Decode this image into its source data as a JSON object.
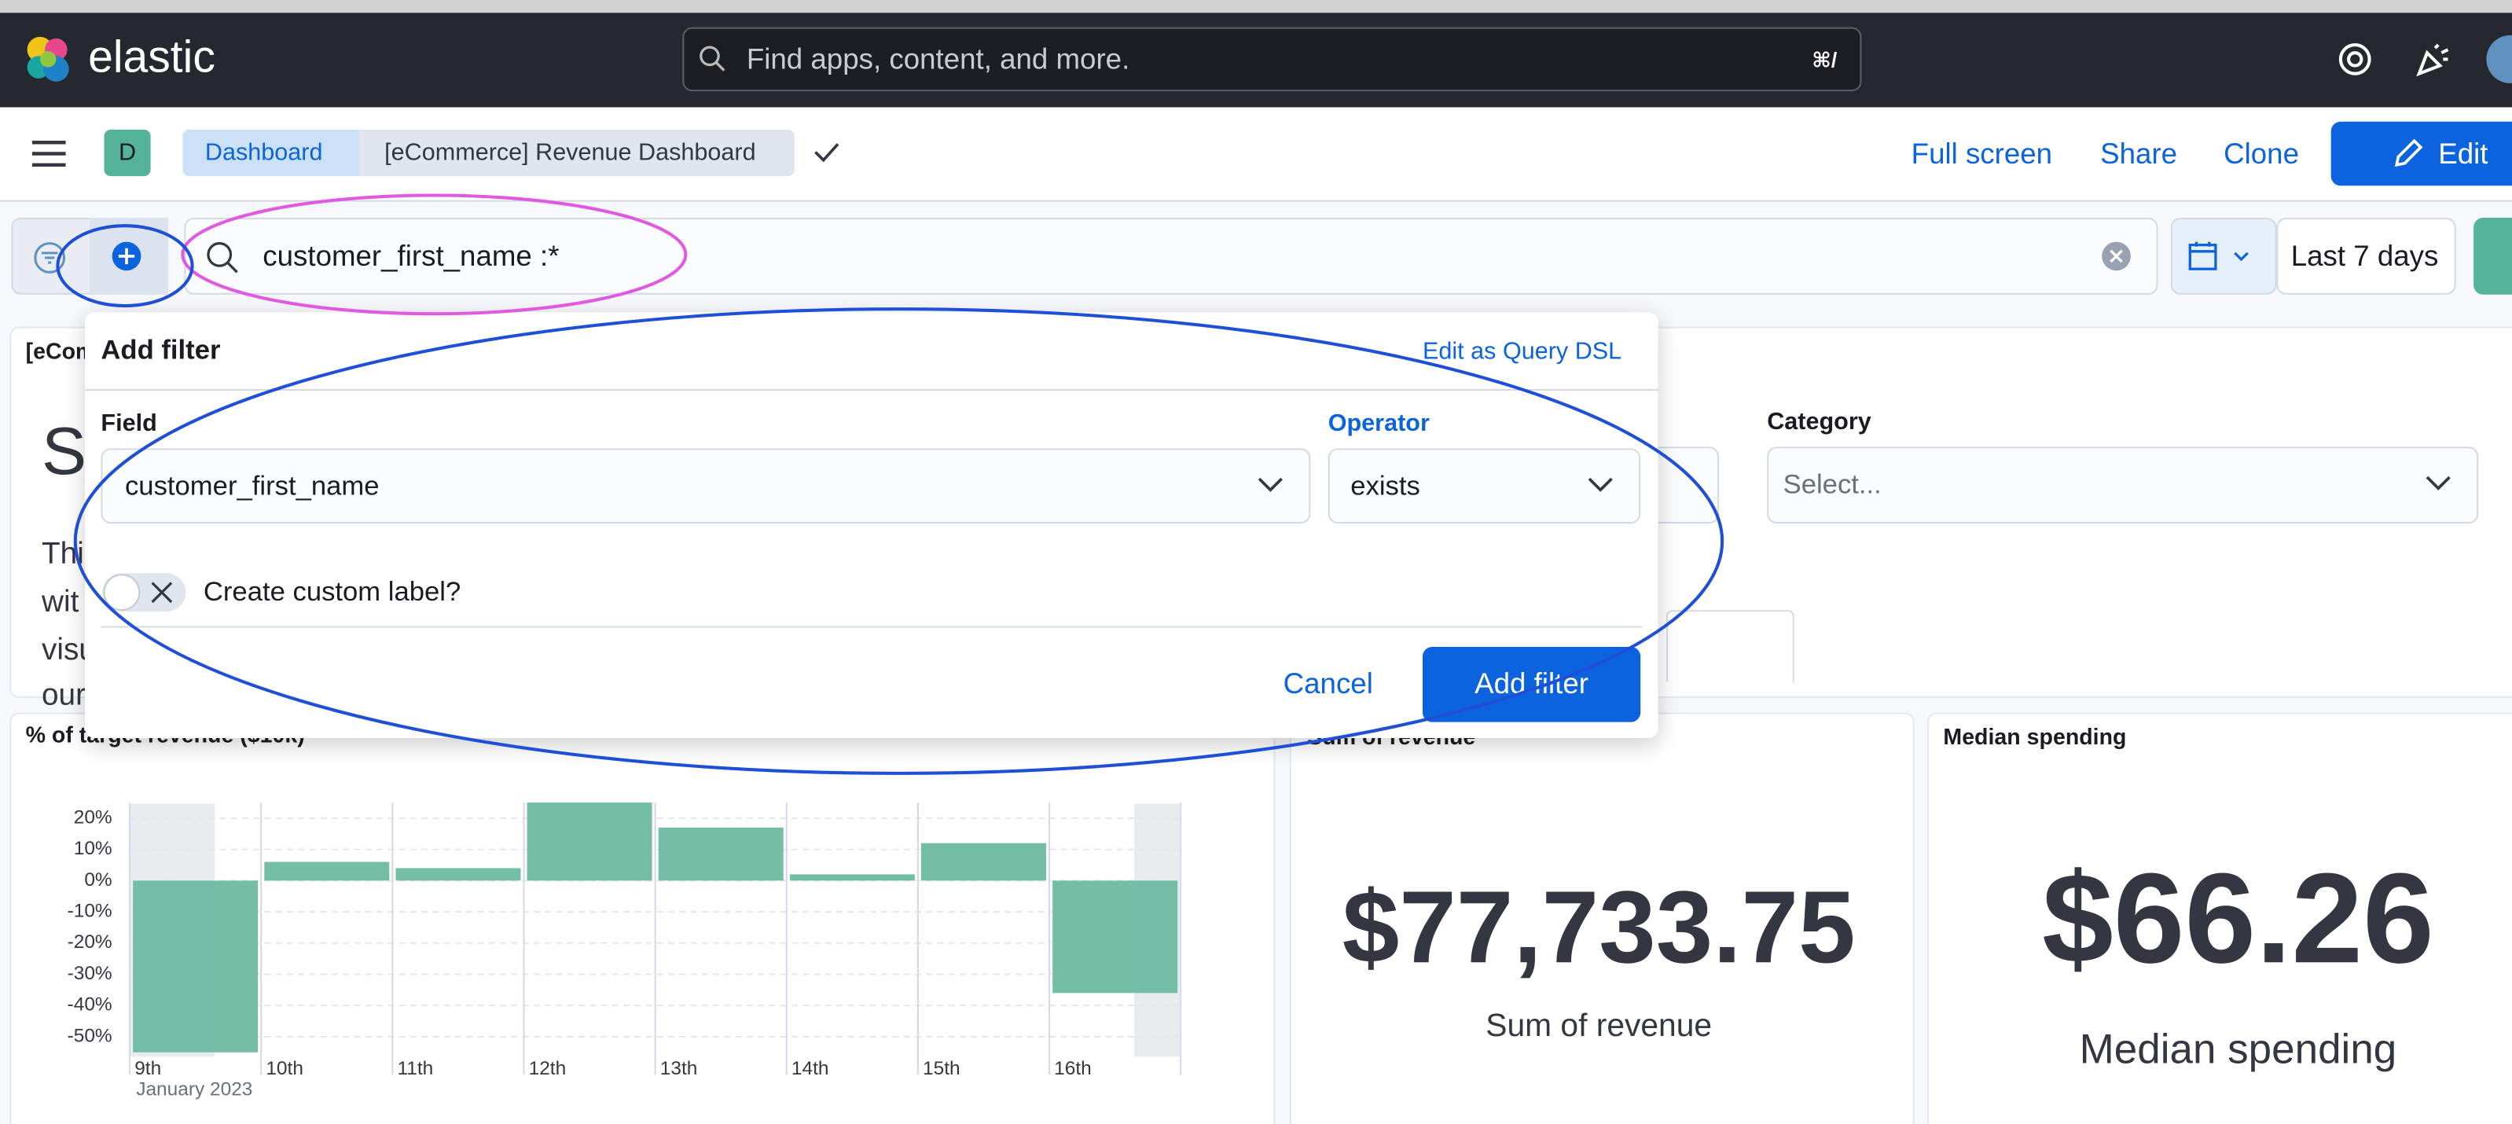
{
  "header": {
    "brand": "elastic",
    "search_placeholder": "Find apps, content, and more.",
    "shortcut": "⌘/"
  },
  "nav": {
    "space_badge": "D",
    "breadcrumbs": [
      "Dashboard",
      "[eCommerce] Revenue Dashboard"
    ],
    "actions": [
      "Full screen",
      "Share",
      "Clone",
      "Edit"
    ]
  },
  "query_bar": {
    "query": "customer_first_name :*",
    "time_range": "Last 7 days"
  },
  "add_filter": {
    "title": "Add filter",
    "edit_dsl": "Edit as Query DSL",
    "field_label": "Field",
    "field_value": "customer_first_name",
    "operator_label": "Operator",
    "operator_value": "exists",
    "custom_label": "Create custom label?",
    "cancel": "Cancel",
    "submit": "Add filter"
  },
  "controls_panel": {
    "title": "[eCom",
    "heading": "Sa",
    "text_lines": [
      "Thi",
      "wit",
      "visu",
      "our"
    ],
    "category_label": "Category",
    "category_placeholder": "Select..."
  },
  "chart_data": {
    "type": "bar",
    "title": "% of target revenue ($10k)",
    "color": "#6dbba1",
    "categories": [
      "9th",
      "10th",
      "11th",
      "12th",
      "13th",
      "14th",
      "15th",
      "16th"
    ],
    "values": [
      -55,
      6,
      4,
      25,
      17,
      2,
      12,
      -36
    ],
    "x_sublabel": "January 2023",
    "ylim": [
      -56,
      25
    ],
    "yticks": [
      {
        "value": -50,
        "label": "-50%"
      },
      {
        "value": -40,
        "label": "-40%"
      },
      {
        "value": -30,
        "label": "-30%"
      },
      {
        "value": -20,
        "label": "-20%"
      },
      {
        "value": -10,
        "label": "-10%"
      },
      {
        "value": 0,
        "label": "0%"
      },
      {
        "value": 10,
        "label": "10%"
      },
      {
        "value": 20,
        "label": "20%"
      }
    ],
    "grid": true
  },
  "metrics": [
    {
      "title": "Sum of revenue",
      "value": "$77,733.75",
      "label": "Sum of revenue"
    },
    {
      "title": "Median spending",
      "value": "$66.26",
      "label": "Median spending"
    }
  ]
}
